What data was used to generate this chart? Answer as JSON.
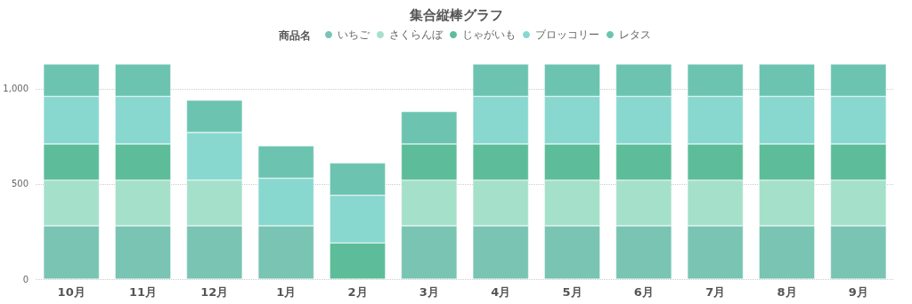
{
  "chart_data": {
    "type": "bar",
    "title": "集合縦棒グラフ",
    "legend_title": "商品名",
    "categories": [
      "10月",
      "11月",
      "12月",
      "1月",
      "2月",
      "3月",
      "4月",
      "5月",
      "6月",
      "7月",
      "8月",
      "9月"
    ],
    "series": [
      {
        "name": "いちご",
        "color": "#79c4b3",
        "values": [
          280,
          280,
          280,
          280,
          null,
          280,
          280,
          280,
          280,
          280,
          280,
          280
        ]
      },
      {
        "name": "さくらんぼ",
        "color": "#a5e0cb",
        "values": [
          240,
          240,
          240,
          null,
          null,
          240,
          240,
          240,
          240,
          240,
          240,
          240
        ]
      },
      {
        "name": "じゃがいも",
        "color": "#5dbd9a",
        "values": [
          190,
          190,
          null,
          null,
          190,
          190,
          190,
          190,
          190,
          190,
          190,
          190
        ]
      },
      {
        "name": "ブロッコリー",
        "color": "#88d8d0",
        "values": [
          250,
          250,
          250,
          250,
          250,
          null,
          250,
          250,
          250,
          250,
          250,
          250
        ]
      },
      {
        "name": "レタス",
        "color": "#6cc4b0",
        "values": [
          170,
          170,
          170,
          170,
          170,
          170,
          170,
          170,
          170,
          170,
          170,
          170
        ]
      }
    ],
    "stacked": true,
    "ylim": [
      0,
      1130
    ],
    "yticks": [
      0,
      500,
      {
        "value": 1000,
        "label": "1,000"
      }
    ],
    "grid": "y",
    "legend": "top"
  }
}
